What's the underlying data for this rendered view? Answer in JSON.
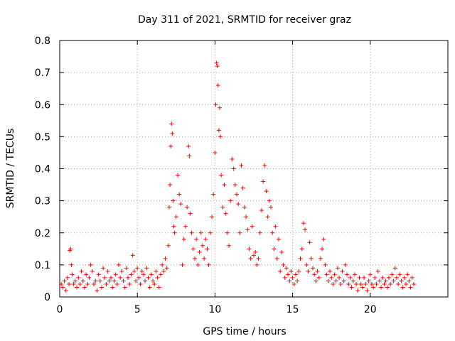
{
  "chart_data": {
    "type": "scatter",
    "title": "Day 311 of 2021, SRMTID for receiver graz",
    "xlabel": "GPS time / hours",
    "ylabel": "SRMTID / TECUs",
    "xlim": [
      0,
      25
    ],
    "ylim": [
      0,
      0.8
    ],
    "xticks": [
      0,
      5,
      10,
      15,
      20
    ],
    "xtick_labels": [
      "0",
      "5",
      "10",
      "15",
      "20"
    ],
    "yticks": [
      0,
      0.1,
      0.2,
      0.3,
      0.4,
      0.5,
      0.6,
      0.7,
      0.8
    ],
    "ytick_labels": [
      "0",
      "0.1",
      "0.2",
      "0.3",
      "0.4",
      "0.5",
      "0.6",
      "0.7",
      "0.8"
    ],
    "grid": true,
    "marker": "+",
    "series": [
      {
        "name": "graz",
        "color": "#ff0000",
        "points": [
          [
            0.1,
            0.04
          ],
          [
            0.2,
            0.03
          ],
          [
            0.3,
            0.05
          ],
          [
            0.4,
            0.02
          ],
          [
            0.5,
            0.06
          ],
          [
            0.6,
            0.04
          ],
          [
            0.65,
            0.145
          ],
          [
            0.7,
            0.15
          ],
          [
            0.75,
            0.1
          ],
          [
            0.8,
            0.07
          ],
          [
            0.9,
            0.04
          ],
          [
            1.0,
            0.05
          ],
          [
            1.1,
            0.03
          ],
          [
            1.2,
            0.06
          ],
          [
            1.3,
            0.04
          ],
          [
            1.4,
            0.08
          ],
          [
            1.5,
            0.05
          ],
          [
            1.6,
            0.03
          ],
          [
            1.7,
            0.07
          ],
          [
            1.8,
            0.04
          ],
          [
            1.9,
            0.06
          ],
          [
            2.0,
            0.1
          ],
          [
            2.1,
            0.08
          ],
          [
            2.2,
            0.04
          ],
          [
            2.3,
            0.05
          ],
          [
            2.4,
            0.02
          ],
          [
            2.5,
            0.07
          ],
          [
            2.6,
            0.05
          ],
          [
            2.7,
            0.03
          ],
          [
            2.8,
            0.09
          ],
          [
            2.9,
            0.06
          ],
          [
            3.0,
            0.04
          ],
          [
            3.1,
            0.08
          ],
          [
            3.2,
            0.05
          ],
          [
            3.3,
            0.06
          ],
          [
            3.4,
            0.03
          ],
          [
            3.5,
            0.05
          ],
          [
            3.6,
            0.07
          ],
          [
            3.7,
            0.04
          ],
          [
            3.8,
            0.1
          ],
          [
            3.9,
            0.06
          ],
          [
            4.0,
            0.08
          ],
          [
            4.1,
            0.05
          ],
          [
            4.2,
            0.03
          ],
          [
            4.3,
            0.09
          ],
          [
            4.4,
            0.06
          ],
          [
            4.5,
            0.04
          ],
          [
            4.6,
            0.07
          ],
          [
            4.7,
            0.13
          ],
          [
            4.8,
            0.08
          ],
          [
            4.9,
            0.05
          ],
          [
            5.0,
            0.09
          ],
          [
            5.1,
            0.06
          ],
          [
            5.2,
            0.04
          ],
          [
            5.3,
            0.08
          ],
          [
            5.4,
            0.07
          ],
          [
            5.5,
            0.05
          ],
          [
            5.6,
            0.09
          ],
          [
            5.7,
            0.06
          ],
          [
            5.8,
            0.03
          ],
          [
            5.9,
            0.07
          ],
          [
            6.0,
            0.05
          ],
          [
            6.1,
            0.04
          ],
          [
            6.2,
            0.08
          ],
          [
            6.3,
            0.06
          ],
          [
            6.4,
            0.03
          ],
          [
            6.5,
            0.07
          ],
          [
            6.6,
            0.1
          ],
          [
            6.7,
            0.08
          ],
          [
            6.8,
            0.12
          ],
          [
            6.9,
            0.09
          ],
          [
            7.0,
            0.16
          ],
          [
            7.05,
            0.28
          ],
          [
            7.1,
            0.35
          ],
          [
            7.15,
            0.47
          ],
          [
            7.2,
            0.54
          ],
          [
            7.25,
            0.51
          ],
          [
            7.3,
            0.3
          ],
          [
            7.35,
            0.22
          ],
          [
            7.4,
            0.2
          ],
          [
            7.5,
            0.25
          ],
          [
            7.6,
            0.38
          ],
          [
            7.7,
            0.32
          ],
          [
            7.8,
            0.29
          ],
          [
            7.9,
            0.1
          ],
          [
            8.0,
            0.18
          ],
          [
            8.1,
            0.22
          ],
          [
            8.2,
            0.28
          ],
          [
            8.3,
            0.47
          ],
          [
            8.35,
            0.44
          ],
          [
            8.4,
            0.26
          ],
          [
            8.5,
            0.2
          ],
          [
            8.6,
            0.15
          ],
          [
            8.7,
            0.12
          ],
          [
            8.8,
            0.18
          ],
          [
            8.9,
            0.1
          ],
          [
            9.0,
            0.14
          ],
          [
            9.1,
            0.2
          ],
          [
            9.2,
            0.16
          ],
          [
            9.3,
            0.12
          ],
          [
            9.4,
            0.18
          ],
          [
            9.5,
            0.15
          ],
          [
            9.6,
            0.1
          ],
          [
            9.7,
            0.2
          ],
          [
            9.8,
            0.25
          ],
          [
            9.9,
            0.32
          ],
          [
            10.0,
            0.45
          ],
          [
            10.05,
            0.6
          ],
          [
            10.1,
            0.73
          ],
          [
            10.15,
            0.72
          ],
          [
            10.2,
            0.66
          ],
          [
            10.25,
            0.52
          ],
          [
            10.3,
            0.59
          ],
          [
            10.35,
            0.5
          ],
          [
            10.4,
            0.38
          ],
          [
            10.5,
            0.28
          ],
          [
            10.6,
            0.35
          ],
          [
            10.7,
            0.26
          ],
          [
            10.8,
            0.2
          ],
          [
            10.9,
            0.16
          ],
          [
            11.0,
            0.3
          ],
          [
            11.1,
            0.43
          ],
          [
            11.2,
            0.4
          ],
          [
            11.3,
            0.35
          ],
          [
            11.4,
            0.32
          ],
          [
            11.5,
            0.29
          ],
          [
            11.6,
            0.2
          ],
          [
            11.7,
            0.41
          ],
          [
            11.8,
            0.34
          ],
          [
            11.9,
            0.28
          ],
          [
            12.0,
            0.25
          ],
          [
            12.1,
            0.21
          ],
          [
            12.2,
            0.15
          ],
          [
            12.3,
            0.12
          ],
          [
            12.4,
            0.22
          ],
          [
            12.5,
            0.13
          ],
          [
            12.6,
            0.14
          ],
          [
            12.7,
            0.1
          ],
          [
            12.8,
            0.12
          ],
          [
            12.9,
            0.2
          ],
          [
            13.0,
            0.27
          ],
          [
            13.1,
            0.36
          ],
          [
            13.2,
            0.41
          ],
          [
            13.3,
            0.33
          ],
          [
            13.4,
            0.25
          ],
          [
            13.5,
            0.3
          ],
          [
            13.6,
            0.28
          ],
          [
            13.7,
            0.2
          ],
          [
            13.8,
            0.15
          ],
          [
            13.9,
            0.22
          ],
          [
            14.0,
            0.12
          ],
          [
            14.1,
            0.18
          ],
          [
            14.2,
            0.08
          ],
          [
            14.3,
            0.14
          ],
          [
            14.4,
            0.1
          ],
          [
            14.5,
            0.06
          ],
          [
            14.6,
            0.09
          ],
          [
            14.7,
            0.07
          ],
          [
            14.8,
            0.05
          ],
          [
            14.9,
            0.08
          ],
          [
            15.0,
            0.06
          ],
          [
            15.1,
            0.04
          ],
          [
            15.2,
            0.07
          ],
          [
            15.3,
            0.05
          ],
          [
            15.4,
            0.08
          ],
          [
            15.5,
            0.12
          ],
          [
            15.6,
            0.15
          ],
          [
            15.7,
            0.23
          ],
          [
            15.8,
            0.21
          ],
          [
            15.9,
            0.1
          ],
          [
            16.0,
            0.08
          ],
          [
            16.1,
            0.17
          ],
          [
            16.2,
            0.12
          ],
          [
            16.3,
            0.09
          ],
          [
            16.4,
            0.07
          ],
          [
            16.5,
            0.05
          ],
          [
            16.6,
            0.08
          ],
          [
            16.7,
            0.06
          ],
          [
            16.8,
            0.12
          ],
          [
            16.9,
            0.15
          ],
          [
            17.0,
            0.18
          ],
          [
            17.1,
            0.1
          ],
          [
            17.2,
            0.07
          ],
          [
            17.3,
            0.05
          ],
          [
            17.4,
            0.08
          ],
          [
            17.5,
            0.06
          ],
          [
            17.6,
            0.04
          ],
          [
            17.7,
            0.07
          ],
          [
            17.8,
            0.05
          ],
          [
            17.9,
            0.09
          ],
          [
            18.0,
            0.06
          ],
          [
            18.1,
            0.04
          ],
          [
            18.2,
            0.08
          ],
          [
            18.3,
            0.05
          ],
          [
            18.4,
            0.1
          ],
          [
            18.5,
            0.07
          ],
          [
            18.6,
            0.04
          ],
          [
            18.7,
            0.06
          ],
          [
            18.8,
            0.03
          ],
          [
            18.9,
            0.05
          ],
          [
            19.0,
            0.07
          ],
          [
            19.1,
            0.04
          ],
          [
            19.2,
            0.02
          ],
          [
            19.3,
            0.06
          ],
          [
            19.4,
            0.04
          ],
          [
            19.5,
            0.03
          ],
          [
            19.6,
            0.06
          ],
          [
            19.7,
            0.04
          ],
          [
            19.8,
            0.02
          ],
          [
            19.9,
            0.05
          ],
          [
            20.0,
            0.07
          ],
          [
            20.1,
            0.04
          ],
          [
            20.2,
            0.03
          ],
          [
            20.3,
            0.06
          ],
          [
            20.4,
            0.04
          ],
          [
            20.5,
            0.08
          ],
          [
            20.6,
            0.05
          ],
          [
            20.7,
            0.03
          ],
          [
            20.8,
            0.06
          ],
          [
            20.9,
            0.04
          ],
          [
            21.0,
            0.05
          ],
          [
            21.1,
            0.03
          ],
          [
            21.2,
            0.06
          ],
          [
            21.3,
            0.04
          ],
          [
            21.4,
            0.07
          ],
          [
            21.5,
            0.05
          ],
          [
            21.6,
            0.09
          ],
          [
            21.7,
            0.06
          ],
          [
            21.8,
            0.04
          ],
          [
            21.9,
            0.07
          ],
          [
            22.0,
            0.05
          ],
          [
            22.1,
            0.03
          ],
          [
            22.2,
            0.06
          ],
          [
            22.3,
            0.04
          ],
          [
            22.4,
            0.07
          ],
          [
            22.5,
            0.05
          ],
          [
            22.6,
            0.03
          ],
          [
            22.7,
            0.06
          ],
          [
            22.8,
            0.04
          ]
        ]
      }
    ]
  }
}
